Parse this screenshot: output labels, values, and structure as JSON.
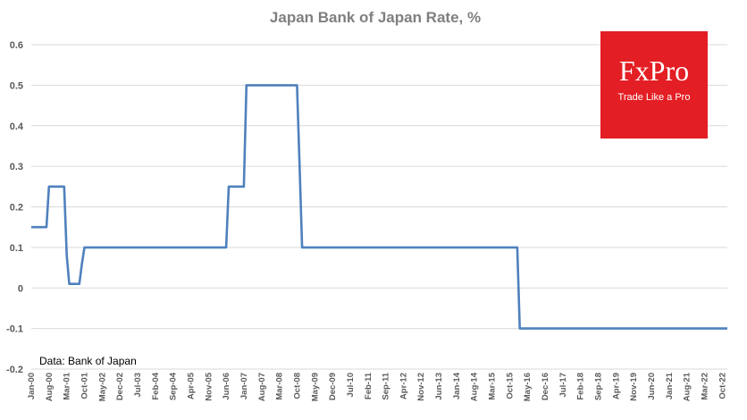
{
  "chart_data": {
    "type": "line",
    "title": "Japan Bank of Japan Rate, %",
    "source_note": "Data: Bank of Japan",
    "ylim": [
      -0.2,
      0.6
    ],
    "y_ticks": [
      "0.6",
      "0.5",
      "0.4",
      "0.3",
      "0.2",
      "0.1",
      "0",
      "-0.1",
      "-0.2"
    ],
    "y_tick_values": [
      0.6,
      0.5,
      0.4,
      0.3,
      0.2,
      0.1,
      0,
      -0.1,
      -0.2
    ],
    "x_tick_labels": [
      "Jan-00",
      "Aug-00",
      "Mar-01",
      "Oct-01",
      "May-02",
      "Dec-02",
      "Jul-03",
      "Feb-04",
      "Sep-04",
      "Apr-05",
      "Nov-05",
      "Jun-06",
      "Jan-07",
      "Aug-07",
      "Mar-08",
      "Oct-08",
      "May-09",
      "Dec-09",
      "Jul-10",
      "Feb-11",
      "Sep-11",
      "Apr-12",
      "Nov-12",
      "Jun-13",
      "Jan-14",
      "Aug-14",
      "Mar-15",
      "Oct-15",
      "May-16",
      "Dec-16",
      "Jul-17",
      "Feb-18",
      "Sep-18",
      "Apr-19",
      "Nov-19",
      "Jun-20",
      "Jan-21",
      "Aug-21",
      "Mar-22",
      "Oct-22"
    ],
    "x_range": [
      "Jan-00",
      "Dec-22"
    ],
    "grid": "horizontal",
    "series": [
      {
        "color": "#4f81bd",
        "points": [
          [
            "Jan-00",
            0.15
          ],
          [
            "Jul-00",
            0.15
          ],
          [
            "Aug-00",
            0.25
          ],
          [
            "Jan-01",
            0.25
          ],
          [
            "Feb-01",
            0.25
          ],
          [
            "Mar-01",
            0.08
          ],
          [
            "Apr-01",
            0.01
          ],
          [
            "Aug-01",
            0.01
          ],
          [
            "Sep-01",
            0.06
          ],
          [
            "Oct-01",
            0.1
          ],
          [
            "Jun-06",
            0.1
          ],
          [
            "Jul-06",
            0.25
          ],
          [
            "Jan-07",
            0.25
          ],
          [
            "Feb-07",
            0.5
          ],
          [
            "Oct-08",
            0.5
          ],
          [
            "Nov-08",
            0.3
          ],
          [
            "Dec-08",
            0.1
          ],
          [
            "Jan-16",
            0.1
          ],
          [
            "Feb-16",
            -0.1
          ],
          [
            "Dec-22",
            -0.1
          ]
        ]
      }
    ]
  },
  "logo": {
    "main": "FxPro",
    "tagline": "Trade Like a Pro",
    "bg": "#e31e24"
  }
}
